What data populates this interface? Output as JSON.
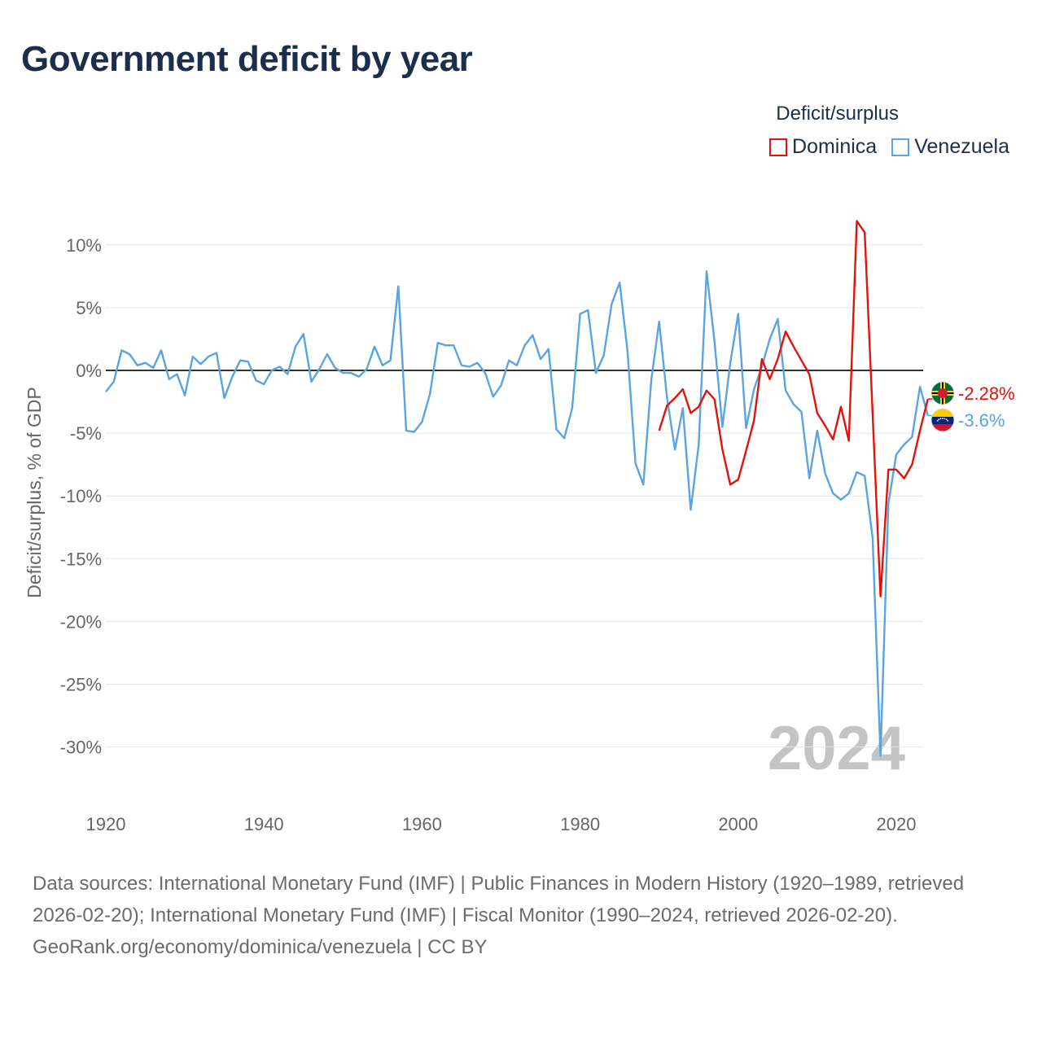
{
  "title": "Government deficit by year",
  "legend": {
    "title": "Deficit/surplus",
    "items": [
      {
        "label": "Dominica",
        "color": "#e3120b"
      },
      {
        "label": "Venezuela",
        "color": "#5aa4e2"
      }
    ]
  },
  "chart_data": {
    "type": "line",
    "title": "Government deficit by year",
    "xlabel": "",
    "ylabel": "Deficit/surplus, % of GDP",
    "xlim": [
      1920,
      2024
    ],
    "ylim": [
      -33,
      12.5
    ],
    "xticks": [
      1920,
      1940,
      1960,
      1980,
      2000,
      2020
    ],
    "yticks": [
      10,
      5,
      0,
      -5,
      -10,
      -15,
      -20,
      -25,
      -30
    ],
    "ytick_labels": [
      "10%",
      "5%",
      "0%",
      "-5%",
      "-10%",
      "-15%",
      "-20%",
      "-25%",
      "-30%"
    ],
    "grid": true,
    "watermark_year": "2024",
    "series": [
      {
        "name": "Dominica",
        "color": "#e3120b",
        "end_label": "-2.28%",
        "flag": "dominica-flag-icon",
        "x": [
          1990,
          1991,
          1992,
          1993,
          1994,
          1995,
          1996,
          1997,
          1998,
          1999,
          2000,
          2001,
          2002,
          2003,
          2004,
          2005,
          2006,
          2007,
          2008,
          2009,
          2010,
          2011,
          2012,
          2013,
          2014,
          2015,
          2016,
          2017,
          2018,
          2019,
          2020,
          2021,
          2022,
          2023,
          2024
        ],
        "y": [
          -4.8,
          -2.8,
          -2.2,
          -1.5,
          -3.4,
          -2.9,
          -1.6,
          -2.3,
          -6.3,
          -9.1,
          -8.7,
          -6.4,
          -4.0,
          0.9,
          -0.7,
          0.9,
          3.1,
          1.9,
          0.8,
          -0.3,
          -3.4,
          -4.4,
          -5.5,
          -2.9,
          -5.6,
          11.9,
          11.0,
          -3.4,
          -18.0,
          -7.9,
          -7.9,
          -8.6,
          -7.5,
          -4.8,
          -2.28
        ]
      },
      {
        "name": "Venezuela",
        "color": "#5aa4e2",
        "end_label": "-3.6%",
        "flag": "venezuela-flag-icon",
        "x": [
          1920,
          1921,
          1922,
          1923,
          1924,
          1925,
          1926,
          1927,
          1928,
          1929,
          1930,
          1931,
          1932,
          1933,
          1934,
          1935,
          1936,
          1937,
          1938,
          1939,
          1940,
          1941,
          1942,
          1943,
          1944,
          1945,
          1946,
          1947,
          1948,
          1949,
          1950,
          1951,
          1952,
          1953,
          1954,
          1955,
          1956,
          1957,
          1958,
          1959,
          1960,
          1961,
          1962,
          1963,
          1964,
          1965,
          1966,
          1967,
          1968,
          1969,
          1970,
          1971,
          1972,
          1973,
          1974,
          1975,
          1976,
          1977,
          1978,
          1979,
          1980,
          1981,
          1982,
          1983,
          1984,
          1985,
          1986,
          1987,
          1988,
          1989,
          1990,
          1991,
          1992,
          1993,
          1994,
          1995,
          1996,
          1997,
          1998,
          1999,
          2000,
          2001,
          2002,
          2003,
          2004,
          2005,
          2006,
          2007,
          2008,
          2009,
          2010,
          2011,
          2012,
          2013,
          2014,
          2015,
          2016,
          2017,
          2018,
          2019,
          2020,
          2021,
          2022,
          2023,
          2024
        ],
        "y": [
          -1.7,
          -0.9,
          1.6,
          1.3,
          0.4,
          0.6,
          0.2,
          1.6,
          -0.7,
          -0.3,
          -2.0,
          1.1,
          0.5,
          1.1,
          1.4,
          -2.2,
          -0.5,
          0.8,
          0.7,
          -0.8,
          -1.1,
          0.0,
          0.3,
          -0.3,
          1.9,
          2.9,
          -0.9,
          0.1,
          1.3,
          0.2,
          -0.2,
          -0.2,
          -0.5,
          0.1,
          1.9,
          0.4,
          0.8,
          6.7,
          -4.8,
          -4.9,
          -4.1,
          -1.9,
          2.2,
          2.0,
          2.0,
          0.4,
          0.3,
          0.6,
          -0.2,
          -2.1,
          -1.2,
          0.8,
          0.4,
          2.0,
          2.8,
          0.9,
          1.7,
          -4.7,
          -5.4,
          -3.0,
          4.5,
          4.8,
          -0.2,
          1.2,
          5.3,
          7.0,
          1.5,
          -7.4,
          -9.1,
          -0.8,
          3.9,
          -2.2,
          -6.3,
          -3.0,
          -11.1,
          -5.9,
          7.9,
          2.3,
          -4.5,
          0.6,
          4.5,
          -4.6,
          -1.5,
          0.3,
          2.5,
          4.1,
          -1.6,
          -2.7,
          -3.3,
          -8.6,
          -4.8,
          -8.2,
          -9.8,
          -10.3,
          -9.8,
          -8.1,
          -8.4,
          -13.3,
          -30.7,
          -10.6,
          -6.7,
          -5.9,
          -5.3,
          -1.3,
          -3.6
        ]
      }
    ]
  },
  "footer": {
    "sources": "Data sources: International Monetary Fund (IMF) | Public Finances in Modern History (1920–1989, retrieved 2026-02-20); International Monetary Fund (IMF) | Fiscal Monitor (1990–2024, retrieved 2026-02-20).",
    "credit": "GeoRank.org/economy/dominica/venezuela | CC BY"
  }
}
